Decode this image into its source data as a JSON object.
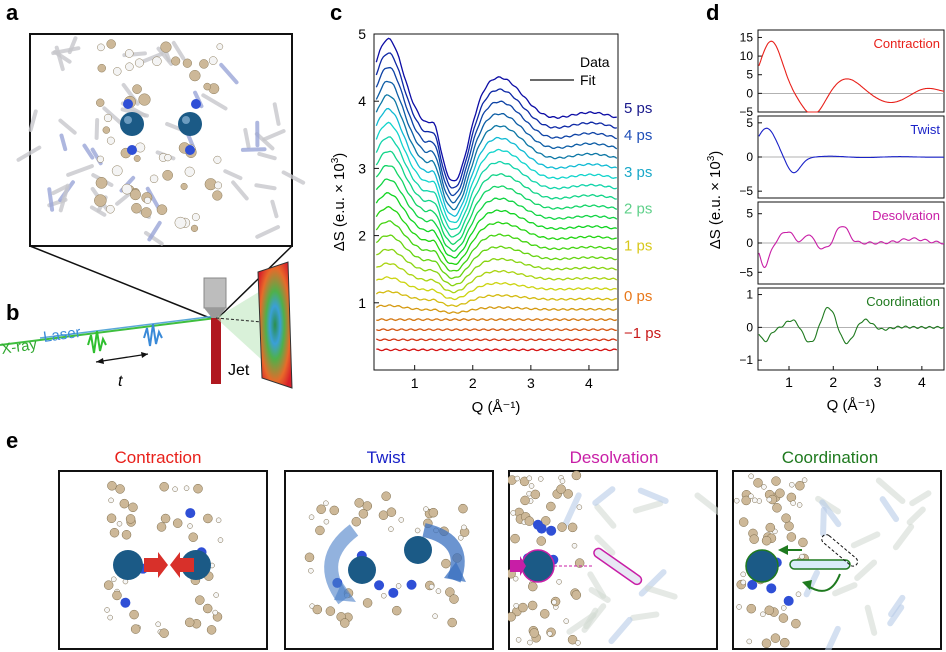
{
  "panel_labels": {
    "a": "a",
    "b": "b",
    "c": "c",
    "d": "d",
    "e": "e"
  },
  "panel_b": {
    "xray_label": "X-ray",
    "laser_label": "Laser",
    "delay_label": "t",
    "jet_label": "Jet"
  },
  "colors": {
    "contraction": "#e8201a",
    "twist": "#1a22c8",
    "desolvation": "#c81ea6",
    "coordination": "#1f7a1f",
    "metal": "#1b5a86",
    "carbon": "#cdb898",
    "nitrogen": "#2f4fd6"
  },
  "chart_data": [
    {
      "type": "line",
      "panel": "c",
      "ylabel_main": "ΔS (e.u. × 10",
      "ylabel_sup": "3",
      "ylabel_end": ")",
      "xlabel": "Q (Å⁻¹)",
      "xlim": [
        0.3,
        4.5
      ],
      "ylim": [
        0,
        5
      ],
      "xticks": [
        "1",
        "2",
        "3",
        "4"
      ],
      "yticks": [
        "1",
        "2",
        "3",
        "4",
        "5"
      ],
      "legend": {
        "data_label": "Data",
        "fit_label": "Fit",
        "position": "top-right"
      },
      "time_labels": [
        {
          "text": "5 ps",
          "offset": 3.9,
          "color": "#1a1a8c"
        },
        {
          "text": "4 ps",
          "offset": 3.5,
          "color": "#1f4fb8"
        },
        {
          "text": "3 ps",
          "offset": 2.95,
          "color": "#1aa8c8"
        },
        {
          "text": "2 ps",
          "offset": 2.4,
          "color": "#5fd08a"
        },
        {
          "text": "1 ps",
          "offset": 1.85,
          "color": "#d8c81a"
        },
        {
          "text": "0 ps",
          "offset": 1.1,
          "color": "#e8781a"
        },
        {
          "text": "−1 ps",
          "offset": 0.55,
          "color": "#c81a1a"
        }
      ],
      "series_count": 24
    },
    {
      "type": "line",
      "panel": "d",
      "ylabel_main": "ΔS (e.u. × 10",
      "ylabel_sup": "3",
      "ylabel_end": ")",
      "xlabel": "Q (Å⁻¹)",
      "xlim": [
        0.3,
        4.5
      ],
      "xticks": [
        "1",
        "2",
        "3",
        "4"
      ],
      "subplots": [
        {
          "name": "Contraction",
          "ylim": [
            -5,
            17
          ],
          "yticks": [
            "15",
            "10",
            "5",
            "0",
            "−5"
          ],
          "color": "#e8201a"
        },
        {
          "name": "Twist",
          "ylim": [
            -6,
            6
          ],
          "yticks": [
            "5",
            "0",
            "−5"
          ],
          "color": "#1a22c8"
        },
        {
          "name": "Desolvation",
          "ylim": [
            -7,
            7
          ],
          "yticks": [
            "5",
            "0",
            "−5"
          ],
          "color": "#c81ea6"
        },
        {
          "name": "Coordination",
          "ylim": [
            -1.3,
            1.2
          ],
          "yticks": [
            "1",
            "0",
            "−1"
          ],
          "color": "#1f7a1f"
        }
      ]
    }
  ],
  "panel_e": [
    {
      "title": "Contraction",
      "color": "#e8201a"
    },
    {
      "title": "Twist",
      "color": "#1a22c8"
    },
    {
      "title": "Desolvation",
      "color": "#c81ea6"
    },
    {
      "title": "Coordination",
      "color": "#1f7a1f"
    }
  ]
}
